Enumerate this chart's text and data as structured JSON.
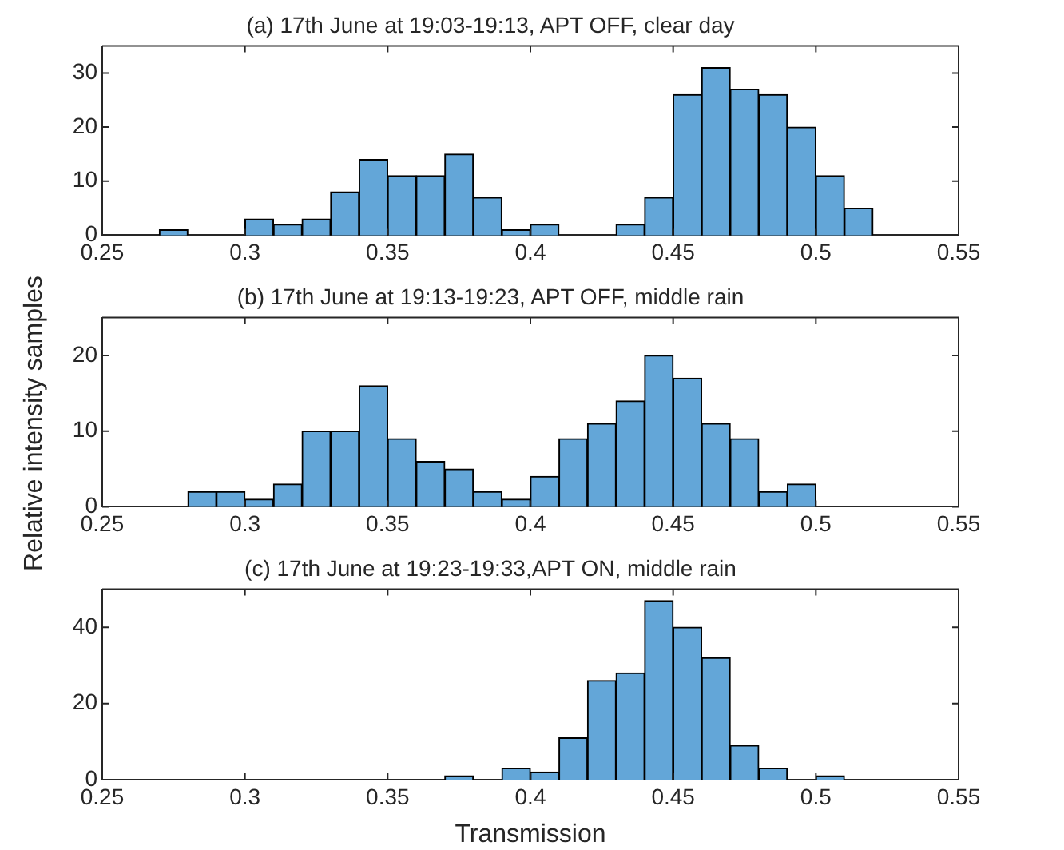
{
  "chart_data": [
    {
      "type": "histogram",
      "title": "(a) 17th June at 19:03-19:13, APT OFF, clear day",
      "color": "#63a6d8",
      "bins": [
        0.27,
        0.28,
        0.29,
        0.3,
        0.31,
        0.32,
        0.33,
        0.34,
        0.35,
        0.36,
        0.37,
        0.38,
        0.39,
        0.4,
        0.41,
        0.42,
        0.43,
        0.44,
        0.45,
        0.46,
        0.47,
        0.48,
        0.49,
        0.5,
        0.51,
        0.52
      ],
      "values": [
        1,
        0,
        0,
        3,
        2,
        3,
        8,
        14,
        11,
        11,
        15,
        7,
        1,
        2,
        0,
        0,
        2,
        7,
        26,
        31,
        27,
        26,
        20,
        11,
        5
      ],
      "xlim": [
        0.25,
        0.55
      ],
      "xticks": [
        0.25,
        0.3,
        0.35,
        0.4,
        0.45,
        0.5,
        0.55
      ],
      "ylim": [
        0,
        35
      ],
      "yticks": [
        0,
        10,
        20,
        30
      ],
      "grid": false,
      "legend": false
    },
    {
      "type": "histogram",
      "title": "(b) 17th June at 19:13-19:23, APT OFF, middle rain",
      "ylabel": "Relative intensity samples",
      "color": "#63a6d8",
      "bins": [
        0.28,
        0.29,
        0.3,
        0.31,
        0.32,
        0.33,
        0.34,
        0.35,
        0.36,
        0.37,
        0.38,
        0.39,
        0.4,
        0.41,
        0.42,
        0.43,
        0.44,
        0.45,
        0.46,
        0.47,
        0.48,
        0.49,
        0.5
      ],
      "values": [
        2,
        2,
        1,
        3,
        10,
        10,
        16,
        9,
        6,
        5,
        2,
        1,
        4,
        9,
        11,
        14,
        20,
        17,
        11,
        9,
        2,
        3
      ],
      "xlim": [
        0.25,
        0.55
      ],
      "xticks": [
        0.25,
        0.3,
        0.35,
        0.4,
        0.45,
        0.5,
        0.55
      ],
      "ylim": [
        0,
        25
      ],
      "yticks": [
        0,
        10,
        20
      ],
      "grid": false,
      "legend": false
    },
    {
      "type": "histogram",
      "title": "(c) 17th June at 19:23-19:33,APT ON, middle rain",
      "xlabel": "Transmission",
      "color": "#63a6d8",
      "bins": [
        0.37,
        0.38,
        0.39,
        0.4,
        0.41,
        0.42,
        0.43,
        0.44,
        0.45,
        0.46,
        0.47,
        0.48,
        0.49,
        0.5,
        0.51
      ],
      "values": [
        1,
        0,
        3,
        2,
        11,
        26,
        28,
        47,
        40,
        32,
        9,
        3,
        0,
        1
      ],
      "xlim": [
        0.25,
        0.55
      ],
      "xticks": [
        0.25,
        0.3,
        0.35,
        0.4,
        0.45,
        0.5,
        0.55
      ],
      "ylim": [
        0,
        50
      ],
      "yticks": [
        0,
        20,
        40
      ],
      "grid": false,
      "legend": false
    }
  ]
}
